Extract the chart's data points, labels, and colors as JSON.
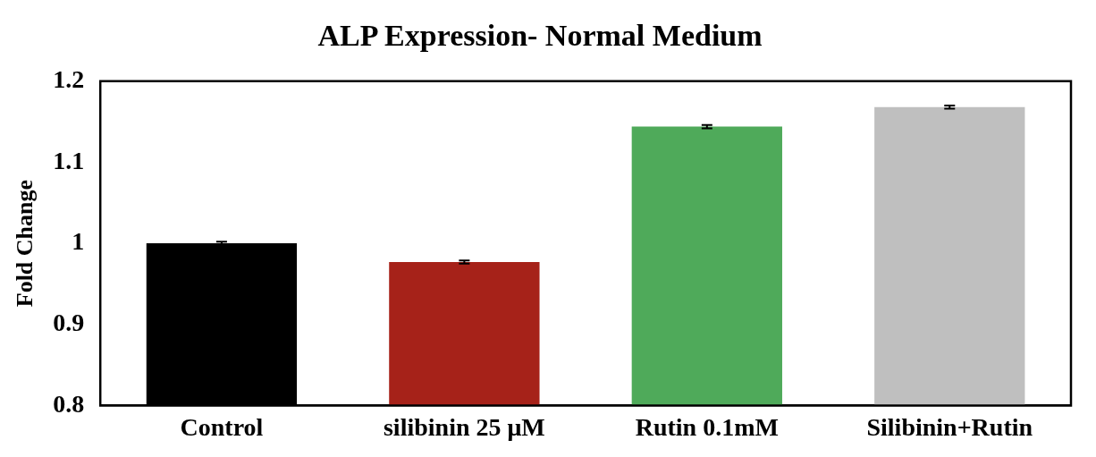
{
  "chart_data": {
    "type": "bar",
    "title": "ALP Expression- Normal Medium",
    "ylabel": "Fold Change",
    "categories": [
      "Control",
      "silibinin 25 μM",
      "Rutin 0.1mM",
      "Silibinin+Rutin"
    ],
    "values": [
      1.0,
      0.977,
      1.144,
      1.168
    ],
    "colors": [
      "#000000",
      "#a62219",
      "#4faa5a",
      "#bfbfbf"
    ],
    "errors": [
      0.002,
      0.002,
      0.002,
      0.002
    ],
    "ylim": [
      0.8,
      1.2
    ],
    "yticks": [
      0.8,
      0.9,
      1,
      1.1,
      1.2
    ],
    "grid": false,
    "legend": false
  }
}
